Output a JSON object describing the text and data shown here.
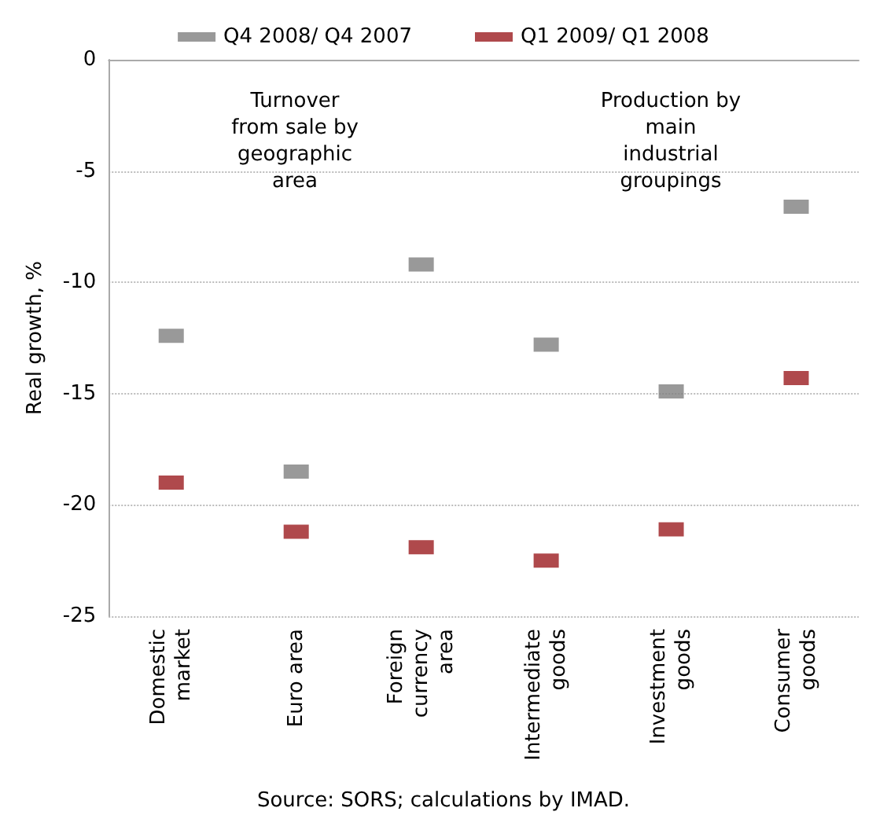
{
  "chart_data": {
    "type": "scatter",
    "ylabel": "Real growth, %",
    "categories": [
      "Domestic\nmarket",
      "Euro area",
      "Foreign\ncurrency\narea",
      "Intermediate\ngoods",
      "Investment\ngoods",
      "Consumer\ngoods"
    ],
    "series": [
      {
        "name": "Q4 2008/ Q4 2007",
        "color": "#7f7f7f",
        "values": [
          -12.4,
          -18.5,
          -9.2,
          -12.8,
          -14.9,
          -6.6
        ]
      },
      {
        "name": "Q1 2009/ Q1 2008",
        "color": "#9b1b1f",
        "values": [
          -19.0,
          -21.2,
          -21.9,
          -22.5,
          -21.1,
          -14.3
        ]
      }
    ],
    "ylim": [
      -25,
      0
    ],
    "yticks": [
      -25,
      -20,
      -15,
      -10,
      -5,
      0
    ],
    "grid": "y",
    "legend": "top",
    "marker": "square",
    "annotations": [
      "Turnover\nfrom sale by\ngeographic\narea",
      "Production by\nmain\nindustrial\ngroupings",
      "Source: SORS; calculations by IMAD."
    ]
  }
}
